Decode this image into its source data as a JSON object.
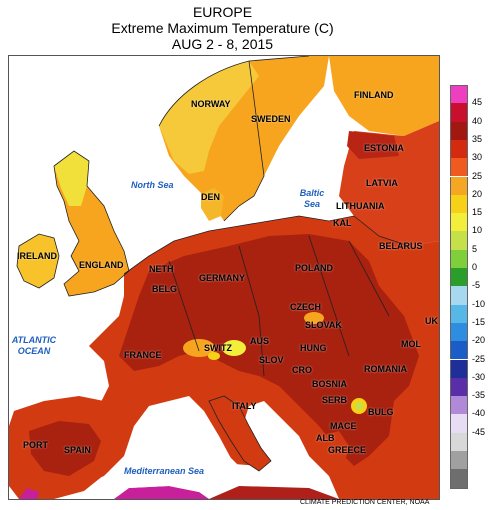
{
  "header": {
    "region": "EUROPE",
    "title": "Extreme Maximum Temperature (C)",
    "dates": "AUG 2 - 8, 2015"
  },
  "credit": "CLIMATE PREDICTION CENTER, NOAA",
  "map": {
    "countries": [
      "NORWAY",
      "SWEDEN",
      "FINLAND",
      "ESTONIA",
      "LATVIA",
      "LITHUANIA",
      "DEN",
      "KAL",
      "BELARUS",
      "IRELAND",
      "ENGLAND",
      "NETH",
      "BELG",
      "GERMANY",
      "POLAND",
      "CZECH",
      "SLOVAK",
      "AUS",
      "SWITZ",
      "HUNG",
      "FRANCE",
      "SLOV",
      "CRO",
      "BOSNIA",
      "ROMANIA",
      "MOL",
      "UK",
      "SERB",
      "BULG",
      "ITALY",
      "MACE",
      "ALB",
      "GREECE",
      "PORT",
      "SPAIN"
    ],
    "seas": {
      "north_sea": "North Sea",
      "baltic_sea": "Baltic Sea",
      "atlantic_ocean": "ATLANTIC OCEAN",
      "mediterranean_sea": "Mediterranean Sea"
    }
  },
  "legend": {
    "ticks": [
      "45",
      "40",
      "35",
      "30",
      "25",
      "20",
      "15",
      "10",
      "5",
      "0",
      "-5",
      "-10",
      "-15",
      "-20",
      "-25",
      "-30",
      "-35",
      "-40",
      "-45"
    ],
    "colors": [
      "#ee3fc0",
      "#c8102e",
      "#a01810",
      "#d42a10",
      "#f05a1e",
      "#f5a623",
      "#f7d118",
      "#f2ee3a",
      "#c6e04a",
      "#7fcf3a",
      "#2a9d2a",
      "#a6d8f0",
      "#57b8e8",
      "#2f8de0",
      "#1a5cc8",
      "#1f2f9a",
      "#5a2ea8",
      "#b08ad8",
      "#e8dcf4",
      "#d8d8d8",
      "#a0a0a0",
      "#6e6e6e"
    ]
  }
}
